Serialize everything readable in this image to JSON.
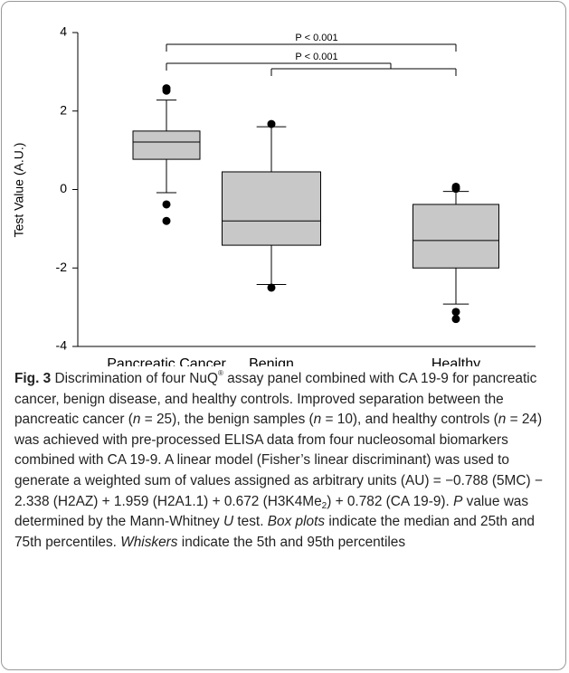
{
  "chart_data": {
    "type": "box",
    "y_label": "Test Value (A.U.)",
    "categories": [
      "Pancreatic Cancer",
      "Benign",
      "Healthy"
    ],
    "sample_sizes": [
      "(n=25)",
      "(n=10)",
      "(n=24)"
    ],
    "boxes": [
      {
        "whisker_low": -0.08,
        "q1": 0.77,
        "median": 1.21,
        "q3": 1.49,
        "whisker_high": 2.28,
        "outliers": [
          -0.38,
          -0.8,
          2.52,
          2.58
        ]
      },
      {
        "whisker_low": -2.42,
        "q1": -1.42,
        "median": -0.8,
        "q3": 0.45,
        "whisker_high": 1.6,
        "outliers": [
          -2.5,
          1.67
        ]
      },
      {
        "whisker_low": -2.92,
        "q1": -2.0,
        "median": -1.3,
        "q3": -0.38,
        "whisker_high": -0.05,
        "outliers": [
          0.02,
          0.07,
          -3.12,
          -3.3
        ]
      }
    ],
    "color": "#c8c8c8",
    "ylim": [
      -4,
      4
    ],
    "yticks": [
      -4,
      -2,
      0,
      2,
      4
    ],
    "annotations": [
      "P < 0.001",
      "P < 0.001"
    ]
  },
  "caption": {
    "parts": [
      "Fig. 3",
      " Discrimination of four NuQ",
      "®",
      " assay panel combined with CA 19-9 for pancreatic cancer, benign disease, and healthy controls. Improved separation between the pancreatic cancer (",
      "n",
      " = 25), the benign samples (",
      "n",
      " = 10), and healthy controls (",
      "n",
      " = 24) was achieved with pre-processed ELISA data from four nucleosomal biomarkers combined with CA 19-9. A linear model (Fisher’s linear discriminant) was used to generate a weighted sum of values assigned as arbitrary units (AU) = −0.788 (5MC) − 2.338 (H2AZ) + 1.959 (H2A1.1) + 0.672 (H3K4Me",
      "2",
      ") + 0.782 (CA 19-9). ",
      "P",
      " value was determined by the Mann-Whitney ",
      "U",
      " test. ",
      "Box plots",
      " indicate the median and 25th and 75th percentiles. ",
      "Whiskers",
      " indicate the 5th and 95th percentiles"
    ]
  }
}
